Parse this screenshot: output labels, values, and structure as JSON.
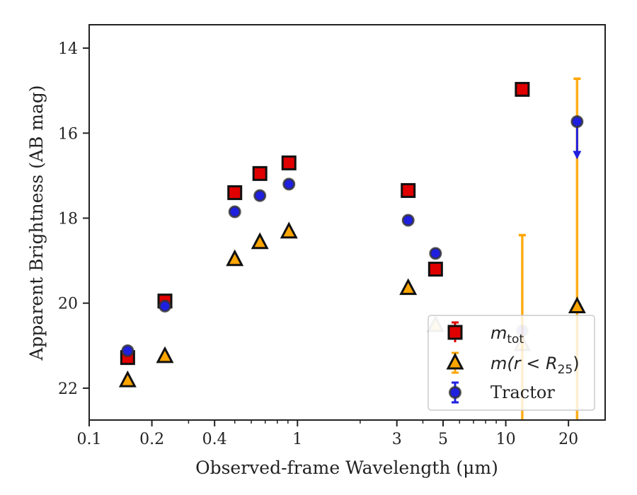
{
  "chart_data": {
    "type": "scatter",
    "xlabel": "Observed-frame Wavelength (μm)",
    "ylabel": "Apparent Brightness (AB mag)",
    "xscale": "log",
    "xlim": [
      0.1,
      30
    ],
    "ylim": [
      22.75,
      13.45
    ],
    "y_inverted": true,
    "xticks": [
      {
        "value": 0.1,
        "label": "0.1"
      },
      {
        "value": 0.2,
        "label": "0.2"
      },
      {
        "value": 0.4,
        "label": "0.4"
      },
      {
        "value": 1,
        "label": "1"
      },
      {
        "value": 3,
        "label": "3"
      },
      {
        "value": 5,
        "label": "5"
      },
      {
        "value": 10,
        "label": "10"
      },
      {
        "value": 20,
        "label": "20"
      }
    ],
    "yticks": [
      {
        "value": 14,
        "label": "14"
      },
      {
        "value": 16,
        "label": "16"
      },
      {
        "value": 18,
        "label": "18"
      },
      {
        "value": 20,
        "label": "20"
      },
      {
        "value": 22,
        "label": "22"
      }
    ],
    "legend_position": "lower right",
    "series": [
      {
        "name": "m_tot",
        "marker": "square",
        "color": "#e00000",
        "points": [
          {
            "x": 0.153,
            "y": 21.28
          },
          {
            "x": 0.231,
            "y": 19.95
          },
          {
            "x": 0.5,
            "y": 17.4
          },
          {
            "x": 0.66,
            "y": 16.95
          },
          {
            "x": 0.91,
            "y": 16.7
          },
          {
            "x": 3.4,
            "y": 17.35
          },
          {
            "x": 4.6,
            "y": 19.2
          },
          {
            "x": 12.0,
            "y": 14.97
          }
        ]
      },
      {
        "name": "m(r < R25)",
        "marker": "triangle",
        "color": "#ffa500",
        "points": [
          {
            "x": 0.153,
            "y": 21.82,
            "alpha": 1.0
          },
          {
            "x": 0.231,
            "y": 21.25,
            "alpha": 1.0
          },
          {
            "x": 0.5,
            "y": 18.97,
            "alpha": 1.0
          },
          {
            "x": 0.66,
            "y": 18.57,
            "alpha": 1.0
          },
          {
            "x": 0.91,
            "y": 18.32,
            "alpha": 1.0
          },
          {
            "x": 3.4,
            "y": 19.65,
            "alpha": 1.0
          },
          {
            "x": 4.6,
            "y": 20.52,
            "alpha": 0.3
          },
          {
            "x": 12.0,
            "y": 20.97,
            "alpha": 0.3,
            "err_lo": 18.4,
            "err_hi": 22.75
          },
          {
            "x": 22.0,
            "y": 20.08,
            "alpha": 1.0,
            "err_lo": 14.72,
            "err_hi": 22.75
          }
        ]
      },
      {
        "name": "Tractor",
        "marker": "circle",
        "color": "#1f1fe0",
        "points": [
          {
            "x": 0.153,
            "y": 21.12,
            "alpha": 1.0
          },
          {
            "x": 0.231,
            "y": 20.07,
            "alpha": 1.0
          },
          {
            "x": 0.5,
            "y": 17.85,
            "alpha": 1.0
          },
          {
            "x": 0.66,
            "y": 17.47,
            "alpha": 1.0
          },
          {
            "x": 0.91,
            "y": 17.2,
            "alpha": 1.0
          },
          {
            "x": 3.4,
            "y": 18.05,
            "alpha": 1.0
          },
          {
            "x": 4.6,
            "y": 18.83,
            "alpha": 1.0
          },
          {
            "x": 12.0,
            "y": 20.65,
            "alpha": 0.3
          },
          {
            "x": 22.0,
            "y": 15.73,
            "alpha": 1.0,
            "upper_limit_to": 16.55
          }
        ]
      }
    ],
    "legend": [
      {
        "label_sym": "m",
        "label_sub": "tot",
        "marker": "square"
      },
      {
        "label_sym": "m(r < R",
        "label_sub": "25",
        "label_end": ")",
        "marker": "triangle"
      },
      {
        "label": "Tractor",
        "marker": "circle"
      }
    ]
  }
}
